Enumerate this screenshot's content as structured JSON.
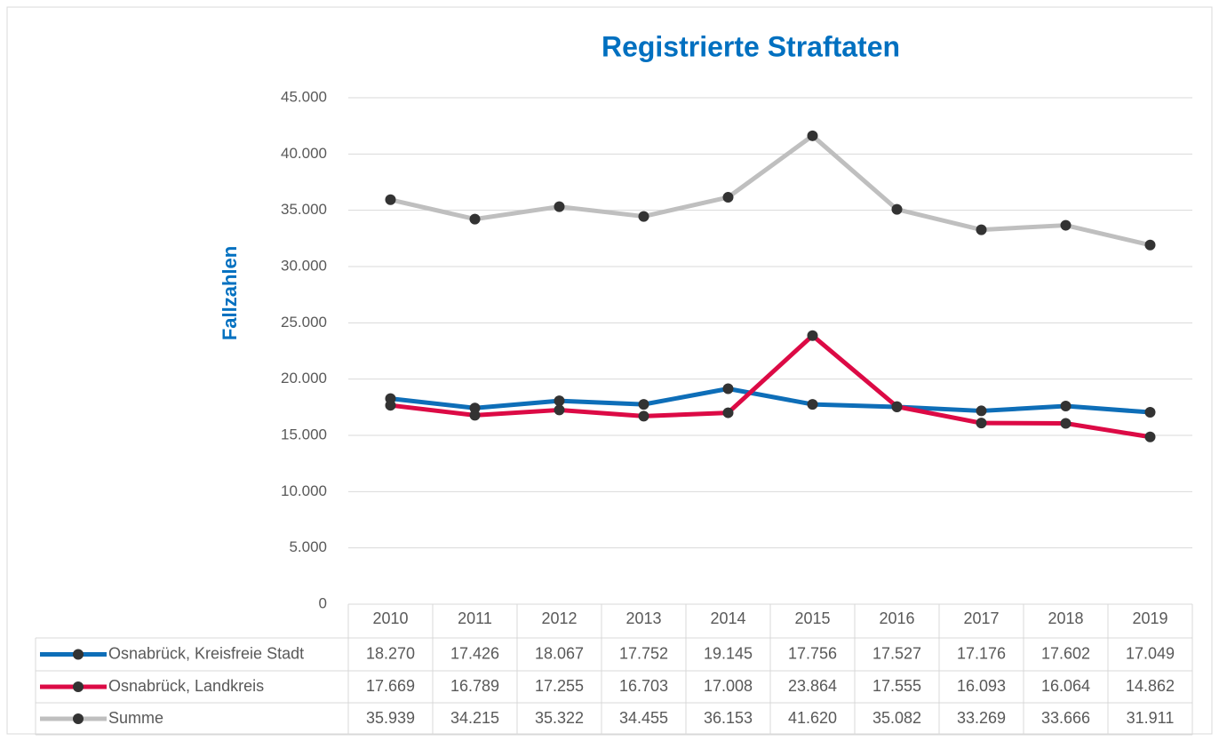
{
  "chart_data": {
    "type": "line",
    "title": "Registrierte Straftaten",
    "y_label": "Fallzahlen",
    "categories": [
      "2010",
      "2011",
      "2012",
      "2013",
      "2014",
      "2015",
      "2016",
      "2017",
      "2018",
      "2019"
    ],
    "series": [
      {
        "name": "Osnabrück, Kreisfreie Stadt",
        "color": "#0e6eb8",
        "values": [
          18270,
          17426,
          18067,
          17752,
          19145,
          17756,
          17527,
          17176,
          17602,
          17049
        ],
        "value_labels": [
          "18.270",
          "17.426",
          "18.067",
          "17.752",
          "19.145",
          "17.756",
          "17.527",
          "17.176",
          "17.602",
          "17.049"
        ]
      },
      {
        "name": "Osnabrück, Landkreis",
        "color": "#dc0a45",
        "values": [
          17669,
          16789,
          17255,
          16703,
          17008,
          23864,
          17555,
          16093,
          16064,
          14862
        ],
        "value_labels": [
          "17.669",
          "16.789",
          "17.255",
          "16.703",
          "17.008",
          "23.864",
          "17.555",
          "16.093",
          "16.064",
          "14.862"
        ]
      },
      {
        "name": "Summe",
        "color": "#bfbfbf",
        "values": [
          35939,
          34215,
          35322,
          34455,
          36153,
          41620,
          35082,
          33269,
          33666,
          31911
        ],
        "value_labels": [
          "35.939",
          "34.215",
          "35.322",
          "34.455",
          "36.153",
          "41.620",
          "35.082",
          "33.269",
          "33.666",
          "31.911"
        ]
      }
    ],
    "ylim": [
      0,
      45000
    ],
    "yticks": [
      0,
      {
        "value": 5000,
        "label": "5.000"
      },
      {
        "value": 10000,
        "label": "10.000"
      },
      {
        "value": 15000,
        "label": "15.000"
      },
      {
        "value": 20000,
        "label": "20.000"
      },
      {
        "value": 25000,
        "label": "25.000"
      },
      {
        "value": 30000,
        "label": "30.000"
      },
      {
        "value": 35000,
        "label": "35.000"
      },
      {
        "value": 40000,
        "label": "40.000"
      },
      {
        "value": 45000,
        "label": "45.000"
      }
    ],
    "grid": true
  }
}
